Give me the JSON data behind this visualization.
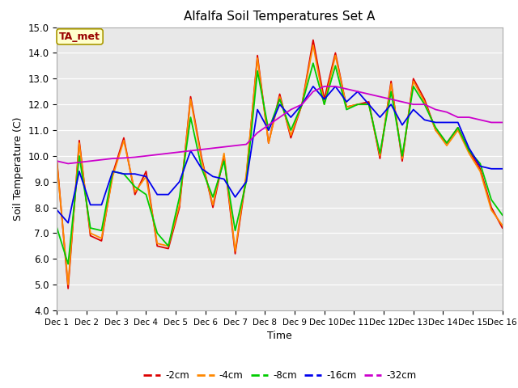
{
  "title": "Alfalfa Soil Temperatures Set A",
  "xlabel": "Time",
  "ylabel": "Soil Temperature (C)",
  "ylim": [
    4.0,
    15.0
  ],
  "yticks": [
    4.0,
    5.0,
    6.0,
    7.0,
    8.0,
    9.0,
    10.0,
    11.0,
    12.0,
    13.0,
    14.0,
    15.0
  ],
  "xtick_labels": [
    "Dec 1",
    "Dec 2",
    "Dec 3",
    "Dec 4",
    "Dec 5",
    "Dec 6",
    "Dec 7",
    "Dec 8",
    "Dec 9",
    "Dec 10",
    "Dec 11",
    "Dec 12",
    "Dec 13",
    "Dec 14",
    "Dec 15",
    "Dec 16"
  ],
  "colors": {
    "-2cm": "#dd0000",
    "-4cm": "#ff8800",
    "-8cm": "#00cc00",
    "-16cm": "#0000ee",
    "-32cm": "#cc00cc"
  },
  "legend_label": "TA_met",
  "fig_bg": "#ffffff",
  "plot_bg": "#e8e8e8",
  "grid_color": "#ffffff",
  "series": {
    "-2cm": [
      9.8,
      4.85,
      10.6,
      6.9,
      6.7,
      9.3,
      10.7,
      8.5,
      9.4,
      6.5,
      6.4,
      8.0,
      12.3,
      9.9,
      8.0,
      10.0,
      6.2,
      9.2,
      13.9,
      10.5,
      12.4,
      10.7,
      12.0,
      14.5,
      12.2,
      14.0,
      11.9,
      12.0,
      12.1,
      9.9,
      12.9,
      9.8,
      13.0,
      12.2,
      11.0,
      10.5,
      11.1,
      10.2,
      9.5,
      8.0,
      7.2
    ],
    "-4cm": [
      9.7,
      5.0,
      10.5,
      7.0,
      6.8,
      9.2,
      10.6,
      8.6,
      9.2,
      6.6,
      6.5,
      8.1,
      12.2,
      9.8,
      8.1,
      10.1,
      6.3,
      9.3,
      13.8,
      10.5,
      12.3,
      10.8,
      12.0,
      14.3,
      12.0,
      13.9,
      11.9,
      12.0,
      12.0,
      10.0,
      12.8,
      9.9,
      12.9,
      12.1,
      11.0,
      10.4,
      11.0,
      10.1,
      9.4,
      7.9,
      7.3
    ],
    "-8cm": [
      7.2,
      5.8,
      10.0,
      7.2,
      7.1,
      9.4,
      9.3,
      8.8,
      8.5,
      7.0,
      6.5,
      8.4,
      11.5,
      9.5,
      8.4,
      9.8,
      7.1,
      9.0,
      13.3,
      11.0,
      12.2,
      11.0,
      12.0,
      13.6,
      12.0,
      13.5,
      11.8,
      12.0,
      12.0,
      10.1,
      12.5,
      10.0,
      12.7,
      12.0,
      11.1,
      10.5,
      11.1,
      10.2,
      9.7,
      8.3,
      7.7
    ],
    "-16cm": [
      7.9,
      7.4,
      9.4,
      8.1,
      8.1,
      9.4,
      9.3,
      9.3,
      9.2,
      8.5,
      8.5,
      9.0,
      10.2,
      9.5,
      9.2,
      9.1,
      8.4,
      9.0,
      11.8,
      11.0,
      12.0,
      11.5,
      12.0,
      12.7,
      12.2,
      12.7,
      12.1,
      12.5,
      12.0,
      11.5,
      12.0,
      11.2,
      11.8,
      11.4,
      11.3,
      11.3,
      11.3,
      10.3,
      9.6,
      9.5,
      9.5
    ],
    "-32cm": [
      9.8,
      9.7,
      9.75,
      9.8,
      9.85,
      9.9,
      9.92,
      9.95,
      10.0,
      10.05,
      10.1,
      10.15,
      10.2,
      10.25,
      10.3,
      10.35,
      10.4,
      10.45,
      10.9,
      11.2,
      11.5,
      11.8,
      12.0,
      12.5,
      12.7,
      12.7,
      12.6,
      12.5,
      12.4,
      12.3,
      12.2,
      12.1,
      12.0,
      12.0,
      11.8,
      11.7,
      11.5,
      11.5,
      11.4,
      11.3,
      11.3
    ]
  }
}
